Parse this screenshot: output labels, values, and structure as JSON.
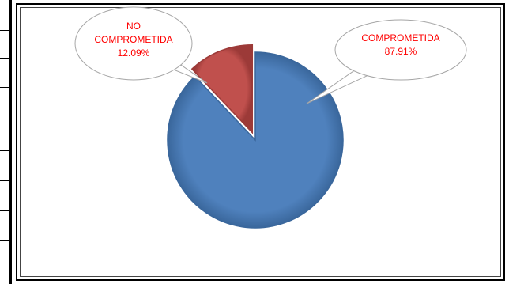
{
  "chart_data": {
    "type": "pie",
    "categories": [
      "COMPROMETIDA",
      "NO COMPROMETIDA"
    ],
    "values": [
      87.91,
      12.09
    ],
    "labels": [
      {
        "lines": [
          "COMPROMETIDA",
          "87.91%"
        ]
      },
      {
        "lines": [
          "NO",
          "COMPROMETIDA",
          "12.09%"
        ]
      }
    ],
    "start_angle_deg": 0,
    "legend": "none",
    "label_style": "callout bubbles"
  },
  "colors": {
    "slices": [
      "#4f81bd",
      "#c0504d"
    ],
    "slice_edges": [
      "#3a679c",
      "#9c3a38"
    ],
    "label_text": "#ff0000",
    "bubble_fill": "#ffffff",
    "bubble_stroke": "#a6a6a6"
  }
}
